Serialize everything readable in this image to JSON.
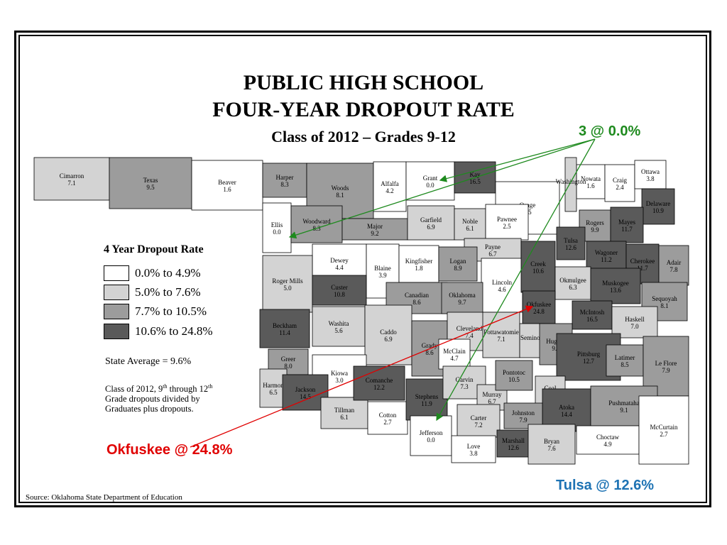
{
  "title": {
    "line1": "PUBLIC HIGH SCHOOL",
    "line2": "FOUR-YEAR DROPOUT RATE",
    "line3": "Class of 2012 – Grades 9-12"
  },
  "legend": {
    "title": "4 Year Dropout Rate",
    "items": [
      {
        "label": "0.0% to 4.9%",
        "color": "#ffffff"
      },
      {
        "label": "5.0% to 7.6%",
        "color": "#d3d3d3"
      },
      {
        "label": "7.7% to 10.5%",
        "color": "#9c9c9c"
      },
      {
        "label": "10.6% to 24.8%",
        "color": "#5a5a5a"
      }
    ]
  },
  "state_average": "State Average = 9.6%",
  "note": {
    "line1_before": "Class of 2012, 9",
    "sup1": "th",
    "line1_mid": " through 12",
    "sup2": "th",
    "line2": "Grade dropouts divided by",
    "line3": "Graduates plus dropouts."
  },
  "source": "Source: Oklahoma State Department of Education",
  "callouts": {
    "zero": {
      "text": "3 @ 0.0%",
      "color": "#1e8a1e"
    },
    "okfuskee": {
      "text": "Okfuskee @ 24.8%",
      "color": "#e00000"
    },
    "tulsa": {
      "text": "Tulsa @ 12.6%",
      "color": "#1e73b4"
    }
  },
  "counties": [
    {
      "name": "Cimarron",
      "value": "7.1"
    },
    {
      "name": "Texas",
      "value": "9.5"
    },
    {
      "name": "Beaver",
      "value": "1.6"
    },
    {
      "name": "Harper",
      "value": "8.3"
    },
    {
      "name": "Woods",
      "value": "8.1"
    },
    {
      "name": "Alfalfa",
      "value": "4.2"
    },
    {
      "name": "Grant",
      "value": "0.0"
    },
    {
      "name": "Kay",
      "value": "16.5"
    },
    {
      "name": "Osage",
      "value": "4.5"
    },
    {
      "name": "Nowata",
      "value": "1.6"
    },
    {
      "name": "Craig",
      "value": "2.4"
    },
    {
      "name": "Ottawa",
      "value": "3.8"
    },
    {
      "name": "Washington",
      "value": ""
    },
    {
      "name": "Delaware",
      "value": "10.9"
    },
    {
      "name": "Rogers",
      "value": "9.9"
    },
    {
      "name": "Mayes",
      "value": "11.7"
    },
    {
      "name": "Ellis",
      "value": "0.0"
    },
    {
      "name": "Woodward",
      "value": "8.3"
    },
    {
      "name": "Major",
      "value": "9.2"
    },
    {
      "name": "Garfield",
      "value": "6.9"
    },
    {
      "name": "Noble",
      "value": "6.1"
    },
    {
      "name": "Pawnee",
      "value": "2.5"
    },
    {
      "name": "Tulsa",
      "value": "12.6"
    },
    {
      "name": "Wagoner",
      "value": "11.2"
    },
    {
      "name": "Cherokee",
      "value": "11.7"
    },
    {
      "name": "Adair",
      "value": "7.8"
    },
    {
      "name": "Payne",
      "value": "6.7"
    },
    {
      "name": "Dewey",
      "value": "4.4"
    },
    {
      "name": "Blaine",
      "value": "3.9"
    },
    {
      "name": "Kingfisher",
      "value": "1.8"
    },
    {
      "name": "Logan",
      "value": "8.9"
    },
    {
      "name": "Lincoln",
      "value": "4.6"
    },
    {
      "name": "Creek",
      "value": "10.6"
    },
    {
      "name": "Okmulgee",
      "value": "6.3"
    },
    {
      "name": "Muskogee",
      "value": "13.6"
    },
    {
      "name": "Sequoyah",
      "value": "8.1"
    },
    {
      "name": "Roger Mills",
      "value": "5.0"
    },
    {
      "name": "Custer",
      "value": "10.8"
    },
    {
      "name": "Canadian",
      "value": "8.6"
    },
    {
      "name": "Oklahoma",
      "value": "9.7"
    },
    {
      "name": "Okfuskee",
      "value": "24.8"
    },
    {
      "name": "McIntosh",
      "value": "16.5"
    },
    {
      "name": "Haskell",
      "value": "7.0"
    },
    {
      "name": "Beckham",
      "value": "11.4"
    },
    {
      "name": "Washita",
      "value": "5.6"
    },
    {
      "name": "Caddo",
      "value": "6.9"
    },
    {
      "name": "Grady",
      "value": "8.6"
    },
    {
      "name": "Cleveland",
      "value": "7.4"
    },
    {
      "name": "McClain",
      "value": "4.7"
    },
    {
      "name": "Pottawatomie",
      "value": "7.1"
    },
    {
      "name": "Seminole",
      "value": ""
    },
    {
      "name": "Hughes",
      "value": "9.0"
    },
    {
      "name": "Pittsburg",
      "value": "12.7"
    },
    {
      "name": "Latimer",
      "value": "8.5"
    },
    {
      "name": "Le Flore",
      "value": "7.9"
    },
    {
      "name": "Greer",
      "value": "8.0"
    },
    {
      "name": "Harmon",
      "value": "6.5"
    },
    {
      "name": "Kiowa",
      "value": "3.0"
    },
    {
      "name": "Jackson",
      "value": "14.5"
    },
    {
      "name": "Tillman",
      "value": "6.1"
    },
    {
      "name": "Comanche",
      "value": "12.2"
    },
    {
      "name": "Cotton",
      "value": "2.7"
    },
    {
      "name": "Stephens",
      "value": "11.9"
    },
    {
      "name": "Garvin",
      "value": "7.3"
    },
    {
      "name": "Murray",
      "value": "6.7"
    },
    {
      "name": "Pontotoc",
      "value": "10.5"
    },
    {
      "name": "Coal",
      "value": "5.2"
    },
    {
      "name": "Atoka",
      "value": "14.4"
    },
    {
      "name": "Pushmataha",
      "value": "9.1"
    },
    {
      "name": "Johnston",
      "value": "7.9"
    },
    {
      "name": "Carter",
      "value": "7.2"
    },
    {
      "name": "Jefferson",
      "value": "0.0"
    },
    {
      "name": "Love",
      "value": "3.8"
    },
    {
      "name": "Marshall",
      "value": "12.6"
    },
    {
      "name": "Bryan",
      "value": "7.6"
    },
    {
      "name": "Choctaw",
      "value": "4.9"
    },
    {
      "name": "McCurtain",
      "value": "2.7"
    }
  ]
}
